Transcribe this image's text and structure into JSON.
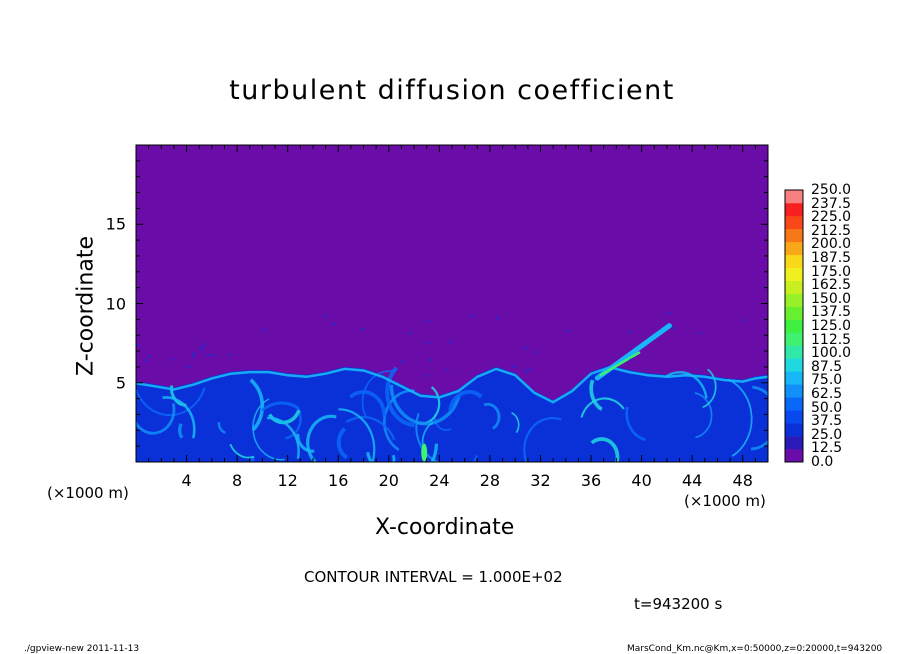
{
  "title": "turbulent diffusion coefficient",
  "x_axis": {
    "label": "X-coordinate",
    "unit_left": "(×1000 m)",
    "unit_right": "(×1000 m)"
  },
  "y_axis": {
    "label": "Z-coordinate"
  },
  "contour_interval": "CONTOUR INTERVAL = 1.000E+02",
  "time": "t=943200 s",
  "footer_left": "./gpview-new  2011-11-13",
  "footer_right": "MarsCond_Km.nc@Km,x=0:50000,z=0:20000,t=943200",
  "chart_data": {
    "type": "heatmap",
    "title": "turbulent diffusion coefficient",
    "xlabel": "X-coordinate",
    "ylabel": "Z-coordinate",
    "xlim": [
      0,
      50
    ],
    "ylim": [
      0,
      20
    ],
    "x_ticks": [
      "4",
      "8",
      "12",
      "16",
      "20",
      "24",
      "28",
      "32",
      "36",
      "40",
      "44",
      "48"
    ],
    "y_ticks": [
      "5",
      "10",
      "15"
    ],
    "colorbar": {
      "min": 0.0,
      "max": 250.0,
      "step": 12.5,
      "labels": [
        "250.0",
        "237.5",
        "225.0",
        "212.5",
        "200.0",
        "187.5",
        "175.0",
        "162.5",
        "150.0",
        "137.5",
        "125.0",
        "112.5",
        "100.0",
        "87.5",
        "75.0",
        "62.5",
        "50.0",
        "37.5",
        "25.0",
        "12.5",
        "0.0"
      ],
      "colors": [
        "#6a0da8",
        "#2a1ab8",
        "#0a30d8",
        "#0a48f0",
        "#0a68f8",
        "#1090f8",
        "#18b8f8",
        "#20d8e0",
        "#30e8a8",
        "#40f070",
        "#40f040",
        "#68f030",
        "#98f028",
        "#c8f020",
        "#f0f020",
        "#f8d818",
        "#f8a818",
        "#f87818",
        "#f84818",
        "#f82020",
        "#f88080"
      ]
    },
    "boundary_layer_top": [
      5.1,
      4.9,
      4.7,
      5.0,
      5.4,
      5.7,
      5.8,
      5.8,
      5.6,
      5.5,
      5.7,
      6.0,
      5.9,
      5.5,
      4.9,
      4.3,
      4.2,
      4.6,
      5.5,
      6.0,
      5.6,
      4.5,
      3.9,
      4.6,
      5.7,
      6.1,
      5.8,
      5.6,
      5.5,
      5.6,
      5.5,
      5.3,
      5.2,
      5.4,
      5.5
    ],
    "boundary_layer_x": [
      0,
      1.5,
      3,
      4.5,
      6,
      7.5,
      9,
      10.5,
      12,
      13.5,
      15,
      16.5,
      18,
      19.5,
      21,
      22.5,
      24,
      25.5,
      27,
      28.5,
      30,
      31.5,
      33,
      34.5,
      36,
      37.5,
      39,
      40.5,
      42,
      43.5,
      45,
      46.5,
      48,
      49,
      50
    ],
    "plume": {
      "x_start": 36.5,
      "z_start": 5.3,
      "x_end": 42.2,
      "z_end": 8.6
    },
    "background_value": 0.0
  }
}
